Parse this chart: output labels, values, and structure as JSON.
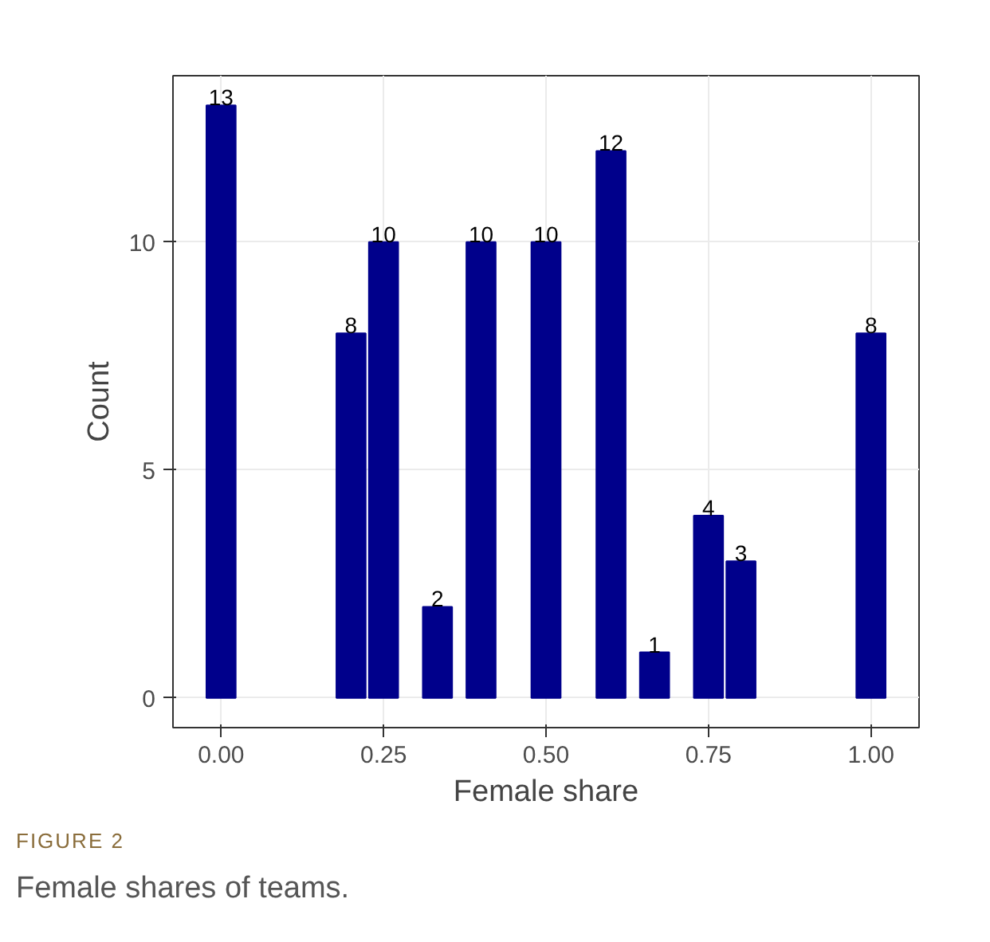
{
  "chart_data": {
    "type": "bar",
    "xlabel": "Female share",
    "ylabel": "Count",
    "x": [
      0,
      0.2,
      0.25,
      0.333,
      0.4,
      0.5,
      0.6,
      0.667,
      0.75,
      0.8,
      1.0
    ],
    "values": [
      13,
      8,
      10,
      2,
      10,
      10,
      12,
      1,
      4,
      3,
      8
    ],
    "color": "#00008b",
    "data_labels": true,
    "xlim": [
      -0.074,
      1.074
    ],
    "ylim": [
      -0.65,
      13.65
    ],
    "xticks": [
      {
        "value": 0,
        "label": "0.00"
      },
      {
        "value": 0.25,
        "label": "0.25"
      },
      {
        "value": 0.5,
        "label": "0.50"
      },
      {
        "value": 0.75,
        "label": "0.75"
      },
      {
        "value": 1,
        "label": "1.00"
      }
    ],
    "yticks": [
      0,
      5,
      10
    ],
    "grid": true,
    "annotations": [
      "FIGURE 2",
      "Female shares of teams."
    ]
  }
}
